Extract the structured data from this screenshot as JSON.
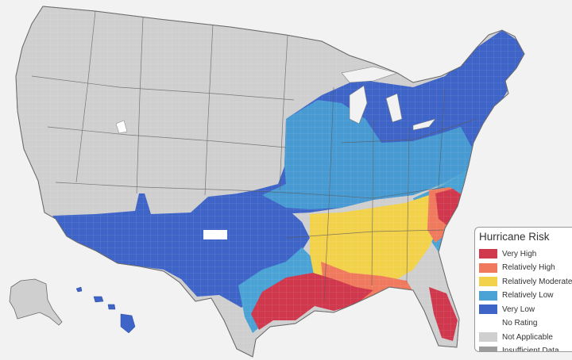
{
  "legend": {
    "title": "Hurricane Risk",
    "items": [
      {
        "key": "very-high",
        "label": "Very High",
        "color": "#d0384e"
      },
      {
        "key": "relatively-high",
        "label": "Relatively High",
        "color": "#ef7a5e"
      },
      {
        "key": "relatively-moderate",
        "label": "Relatively Moderate",
        "color": "#f2d14b"
      },
      {
        "key": "relatively-low",
        "label": "Relatively Low",
        "color": "#4aa3d4"
      },
      {
        "key": "very-low",
        "label": "Very Low",
        "color": "#3e64c7"
      },
      {
        "key": "no-rating",
        "label": "No Rating",
        "color": "#ffffff"
      },
      {
        "key": "not-applicable",
        "label": "Not Applicable",
        "color": "#cfcfcf"
      },
      {
        "key": "insufficient-data",
        "label": "Insufficient Data",
        "color": "#9c9c9c"
      }
    ]
  }
}
